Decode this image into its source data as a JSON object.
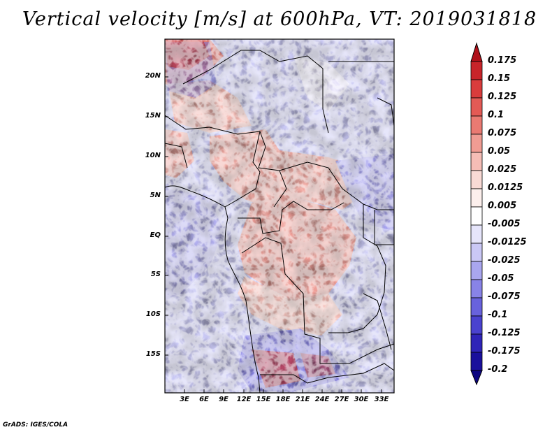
{
  "title": "Vertical velocity [m/s] at 600hPa, VT: 2019031818",
  "credit": "GrADS: IGES/COLA",
  "lat_labels": [
    "20N",
    "15N",
    "10N",
    "5N",
    "EQ",
    "5S",
    "10S",
    "15S"
  ],
  "lon_labels": [
    "3E",
    "6E",
    "9E",
    "12E",
    "15E",
    "18E",
    "21E",
    "24E",
    "27E",
    "30E",
    "33E"
  ],
  "colorbar": {
    "labels": [
      "0.175",
      "0.15",
      "0.125",
      "0.1",
      "0.075",
      "0.05",
      "0.025",
      "0.0125",
      "0.005",
      "-0.005",
      "-0.0125",
      "-0.025",
      "-0.05",
      "-0.075",
      "-0.1",
      "-0.125",
      "-0.175",
      "-0.2"
    ],
    "colors": [
      "#b0101a",
      "#c8242a",
      "#d93c3c",
      "#e35a55",
      "#ea7a72",
      "#f09c93",
      "#f5bdb6",
      "#f9dad5",
      "#fcefec",
      "#ffffff",
      "#e6e5fb",
      "#cac8f6",
      "#a9a6ef",
      "#8883e7",
      "#6862dc",
      "#4a42cf",
      "#2f24b8",
      "#1a109c",
      "#0d0580"
    ]
  }
}
